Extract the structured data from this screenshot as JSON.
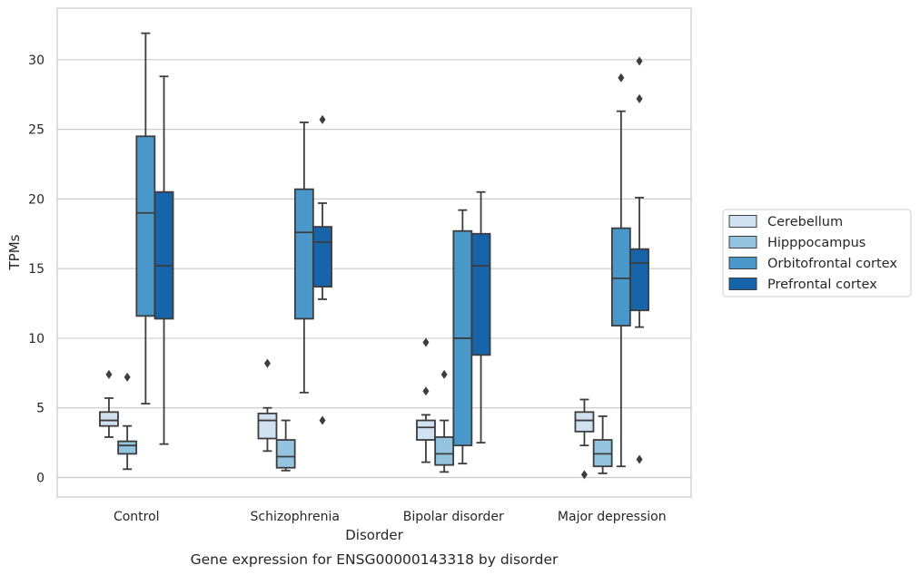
{
  "chart_data": {
    "type": "box",
    "title": "",
    "caption": "Gene expression for ENSG00000143318 by disorder",
    "xlabel": "Disorder",
    "ylabel": "TPMs",
    "ylim": [
      -1.4,
      33.7
    ],
    "yticks": [
      0,
      5,
      10,
      15,
      20,
      25,
      30
    ],
    "grid": "horizontal",
    "legend_position": "right",
    "categories": [
      "Control",
      "Schizophrenia",
      "Bipolar disorder",
      "Major depression"
    ],
    "series": [
      {
        "name": "Cerebellum",
        "color": "#d0e1f2",
        "boxes": [
          {
            "whisker_low": 2.9,
            "q1": 3.7,
            "median": 4.1,
            "q3": 4.7,
            "whisker_high": 5.7,
            "outliers": [
              7.4
            ]
          },
          {
            "whisker_low": 1.9,
            "q1": 2.8,
            "median": 4.1,
            "q3": 4.6,
            "whisker_high": 5.0,
            "outliers": [
              8.2
            ]
          },
          {
            "whisker_low": 1.1,
            "q1": 2.7,
            "median": 3.6,
            "q3": 4.1,
            "whisker_high": 4.5,
            "outliers": [
              6.2,
              9.7
            ]
          },
          {
            "whisker_low": 2.3,
            "q1": 3.3,
            "median": 4.1,
            "q3": 4.7,
            "whisker_high": 5.6,
            "outliers": [
              0.2
            ]
          }
        ]
      },
      {
        "name": "Hipppocampus",
        "color": "#94c4df",
        "boxes": [
          {
            "whisker_low": 0.6,
            "q1": 1.7,
            "median": 2.3,
            "q3": 2.6,
            "whisker_high": 3.7,
            "outliers": [
              7.2
            ]
          },
          {
            "whisker_low": 0.5,
            "q1": 0.7,
            "median": 1.5,
            "q3": 2.7,
            "whisker_high": 4.1,
            "outliers": []
          },
          {
            "whisker_low": 0.4,
            "q1": 0.9,
            "median": 1.7,
            "q3": 2.9,
            "whisker_high": 4.1,
            "outliers": [
              7.4
            ]
          },
          {
            "whisker_low": 0.3,
            "q1": 0.8,
            "median": 1.7,
            "q3": 2.7,
            "whisker_high": 4.4,
            "outliers": []
          }
        ]
      },
      {
        "name": "Orbitofrontal cortex",
        "color": "#4a98c9",
        "boxes": [
          {
            "whisker_low": 5.3,
            "q1": 11.6,
            "median": 19.0,
            "q3": 24.5,
            "whisker_high": 31.9,
            "outliers": []
          },
          {
            "whisker_low": 6.1,
            "q1": 11.4,
            "median": 17.6,
            "q3": 20.7,
            "whisker_high": 25.5,
            "outliers": []
          },
          {
            "whisker_low": 1.0,
            "q1": 2.3,
            "median": 10.0,
            "q3": 17.7,
            "whisker_high": 19.2,
            "outliers": []
          },
          {
            "whisker_low": 0.8,
            "q1": 10.9,
            "median": 14.3,
            "q3": 17.9,
            "whisker_high": 26.3,
            "outliers": [
              28.7
            ]
          }
        ]
      },
      {
        "name": "Prefrontal cortex",
        "color": "#1764ab",
        "boxes": [
          {
            "whisker_low": 2.4,
            "q1": 11.4,
            "median": 15.2,
            "q3": 20.5,
            "whisker_high": 28.8,
            "outliers": []
          },
          {
            "whisker_low": 12.8,
            "q1": 13.7,
            "median": 16.9,
            "q3": 18.0,
            "whisker_high": 19.7,
            "outliers": [
              4.1,
              25.7
            ]
          },
          {
            "whisker_low": 2.5,
            "q1": 8.8,
            "median": 15.2,
            "q3": 17.5,
            "whisker_high": 20.5,
            "outliers": []
          },
          {
            "whisker_low": 10.8,
            "q1": 12.0,
            "median": 15.4,
            "q3": 16.4,
            "whisker_high": 20.1,
            "outliers": [
              1.3,
              27.2,
              29.9
            ]
          }
        ]
      }
    ]
  }
}
